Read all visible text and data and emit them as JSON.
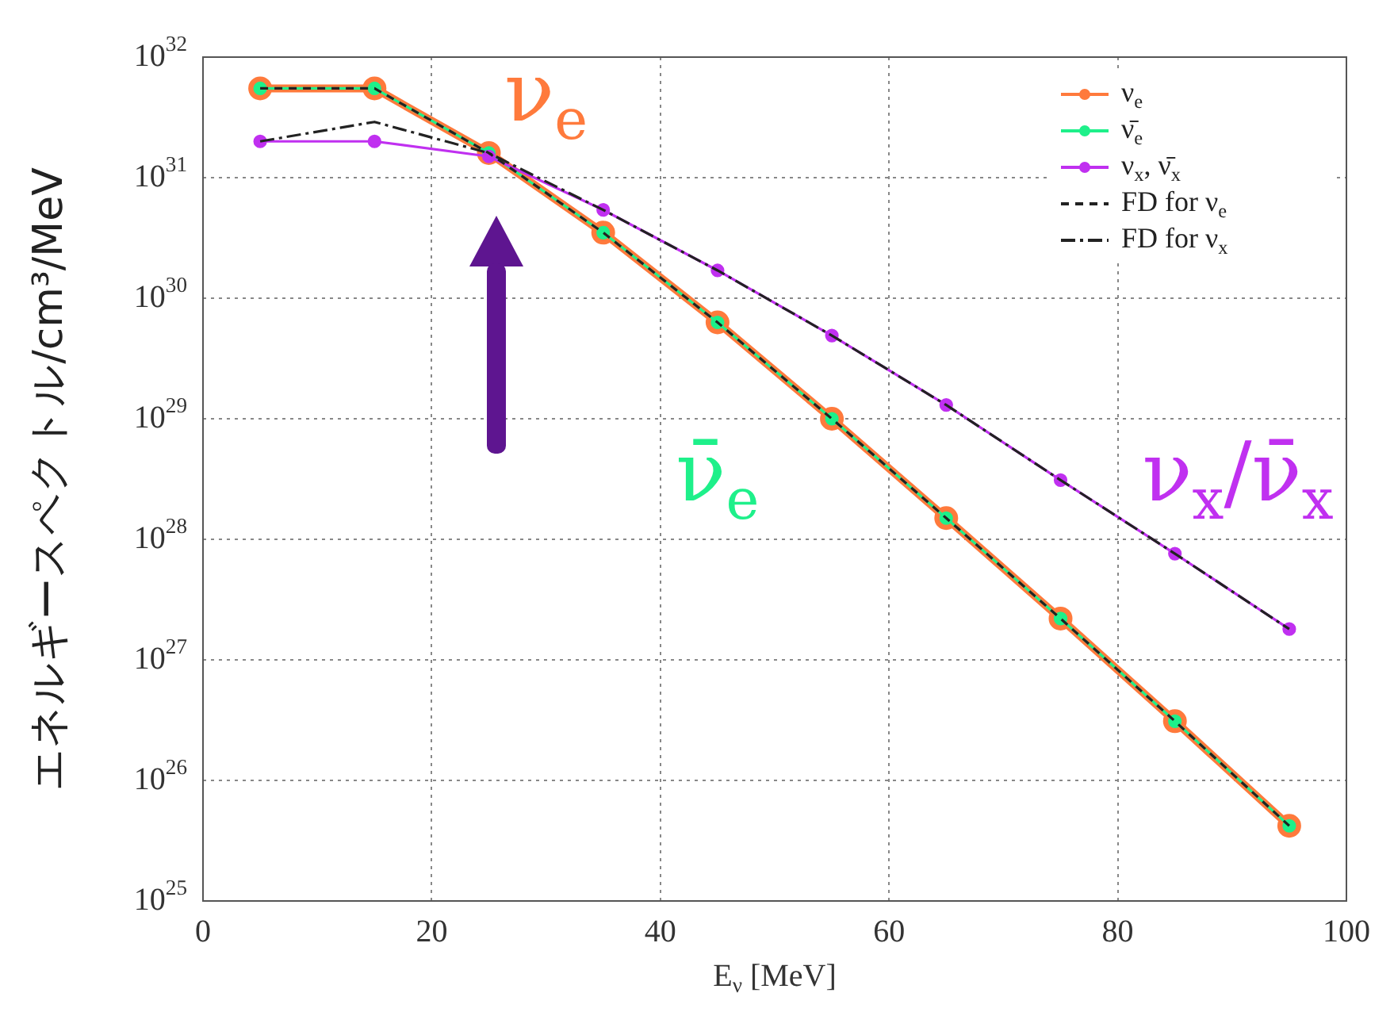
{
  "chart_data": {
    "type": "line",
    "xlabel": "E$_{ν}$ [MeV]",
    "ylabel": "エネルギースペクトル/cm³/MeV",
    "x": [
      5,
      15,
      25,
      35,
      45,
      55,
      65,
      75,
      85,
      95
    ],
    "xlim": [
      0,
      100
    ],
    "xticks": [
      0,
      20,
      40,
      60,
      80,
      100
    ],
    "ylim": [
      1e+25,
      1e+32
    ],
    "log": true,
    "yticks": [
      {
        "value": 1e+25,
        "label": "10$^{25}$"
      },
      {
        "value": 1e+26,
        "label": "10$^{26}$"
      },
      {
        "value": 1e+27,
        "label": "10$^{27}$"
      },
      {
        "value": 1e+28,
        "label": "10$^{28}$"
      },
      {
        "value": 1e+29,
        "label": "10$^{29}$"
      },
      {
        "value": 1e+30,
        "label": "10$^{30}$"
      },
      {
        "value": 1e+31,
        "label": "10$^{31}$"
      },
      {
        "value": 1e+32,
        "label": "10$^{32}$"
      }
    ],
    "grid": true,
    "legend": "top right",
    "series": [
      {
        "name": "ν$_{e}$",
        "color": "#ff7a3c",
        "marker": "circle",
        "line_style": "solid",
        "values": [
          5.5e+31,
          5.5e+31,
          1.6e+31,
          3.5e+30,
          6.3e+29,
          1e+29,
          1.5e+28,
          2.2e+27,
          3.1e+26,
          4.2e+25
        ]
      },
      {
        "name": "ν̄$_{e}$",
        "color": "#1ef08a",
        "marker": "circle",
        "line_style": "solid",
        "values": [
          5.5e+31,
          5.5e+31,
          1.6e+31,
          3.5e+30,
          6.3e+29,
          1e+29,
          1.5e+28,
          2.2e+27,
          3.1e+26,
          4.2e+25
        ]
      },
      {
        "name": "ν$_{x}$, ν̄$_{x}$",
        "color": "#c030f0",
        "marker": "circle",
        "line_style": "solid",
        "values": [
          2e+31,
          2e+31,
          1.5e+31,
          5.4e+30,
          1.7e+30,
          4.9e+29,
          1.3e+29,
          3.1e+28,
          7.6e+27,
          1.8e+27
        ]
      },
      {
        "name": "FD for ν$_{e}$",
        "color": "#222222",
        "marker": "none",
        "line_style": "dashed",
        "values": [
          5.5e+31,
          5.5e+31,
          1.6e+31,
          3.5e+30,
          6.3e+29,
          1e+29,
          1.5e+28,
          2.2e+27,
          3.1e+26,
          4.2e+25
        ]
      },
      {
        "name": "FD for ν$_{x}$",
        "color": "#222222",
        "marker": "none",
        "line_style": "dashdot",
        "values": [
          2e+31,
          2.9e+31,
          1.6e+31,
          5.4e+30,
          1.7e+30,
          4.9e+29,
          1.3e+29,
          3.1e+28,
          7.6e+27,
          1.8e+27
        ]
      }
    ],
    "annotations": [
      "ν$_{e}$",
      "ν̄$_{e}$",
      "ν$_{x}$/ν̄$_{x}$"
    ]
  }
}
